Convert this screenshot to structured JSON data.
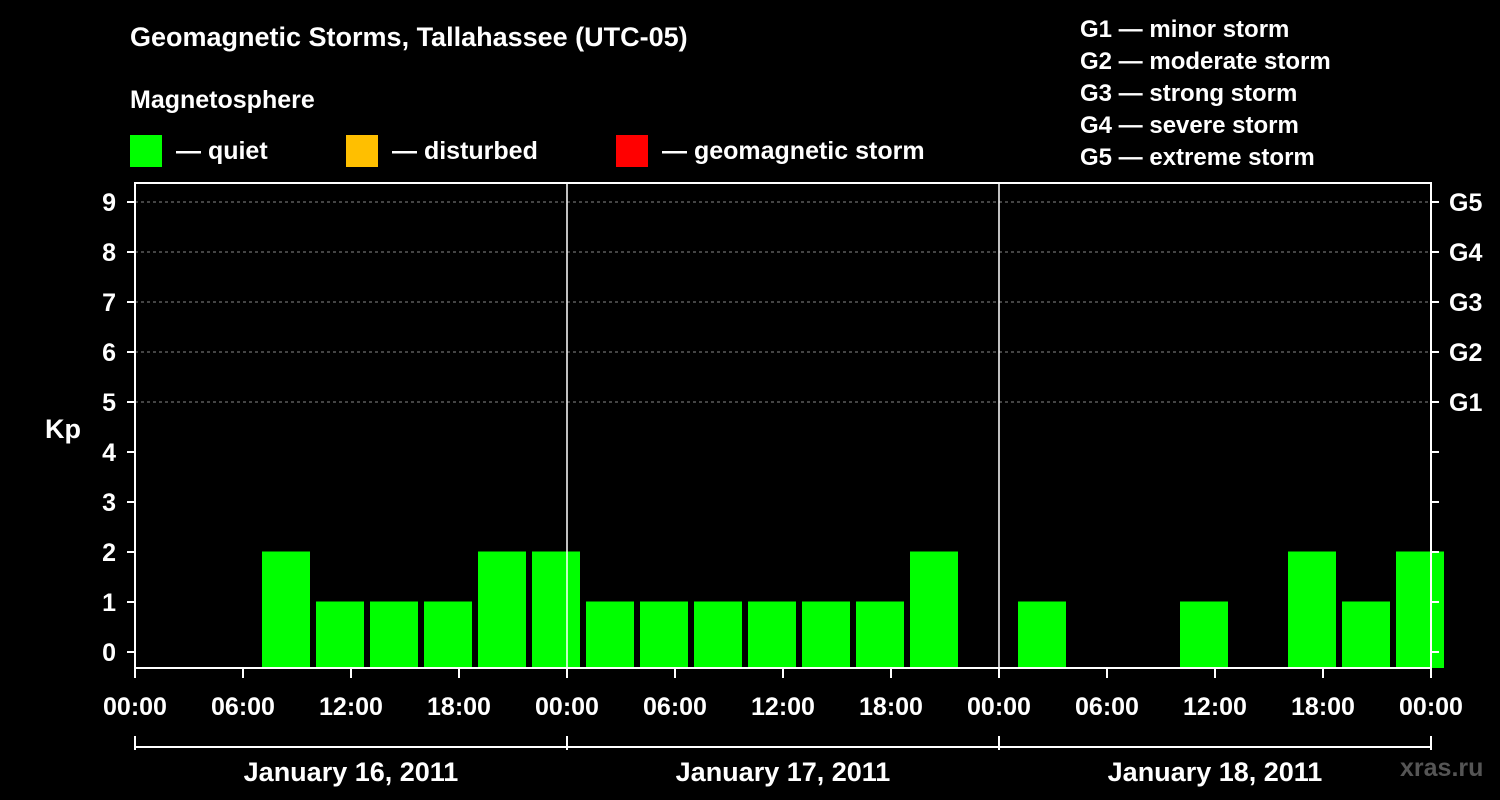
{
  "colors": {
    "quiet": "#00ff00",
    "disturbed": "#ffbf00",
    "storm": "#ff0000",
    "grid": "#888888",
    "axis": "#ffffff",
    "watermark": "#555555"
  },
  "legend": [
    {
      "label": "— quiet",
      "color_key": "quiet"
    },
    {
      "label": "— disturbed",
      "color_key": "disturbed"
    },
    {
      "label": "— geomagnetic storm",
      "color_key": "storm"
    }
  ],
  "g_scale": [
    "G1 — minor storm",
    "G2 — moderate storm",
    "G3 — strong storm",
    "G4 — severe storm",
    "G5 — extreme storm"
  ],
  "watermark": "xras.ru",
  "chart_data": {
    "type": "bar",
    "title": "Geomagnetic Storms, Tallahassee (UTC-05)",
    "subtitle": "Magnetosphere",
    "ylabel": "Kp",
    "ylim": [
      0,
      9
    ],
    "yticks": [
      "0",
      "1",
      "2",
      "3",
      "4",
      "5",
      "6",
      "7",
      "8",
      "9"
    ],
    "right_ticks": [
      {
        "kp": 5,
        "label": "G1"
      },
      {
        "kp": 6,
        "label": "G2"
      },
      {
        "kp": 7,
        "label": "G3"
      },
      {
        "kp": 8,
        "label": "G4"
      },
      {
        "kp": 9,
        "label": "G5"
      }
    ],
    "gridlines_kp": [
      5,
      6,
      7,
      8,
      9
    ],
    "hours_range": [
      0,
      72
    ],
    "xticks": [
      {
        "hour": 0,
        "label": "00:00"
      },
      {
        "hour": 6,
        "label": "06:00"
      },
      {
        "hour": 12,
        "label": "12:00"
      },
      {
        "hour": 18,
        "label": "18:00"
      },
      {
        "hour": 24,
        "label": "00:00"
      },
      {
        "hour": 30,
        "label": "06:00"
      },
      {
        "hour": 36,
        "label": "12:00"
      },
      {
        "hour": 42,
        "label": "18:00"
      },
      {
        "hour": 48,
        "label": "00:00"
      },
      {
        "hour": 54,
        "label": "06:00"
      },
      {
        "hour": 60,
        "label": "12:00"
      },
      {
        "hour": 66,
        "label": "18:00"
      },
      {
        "hour": 72,
        "label": "00:00"
      }
    ],
    "days": [
      {
        "label": "January 16, 2011",
        "start_hour": 0,
        "end_hour": 24
      },
      {
        "label": "January 17, 2011",
        "start_hour": 24,
        "end_hour": 48
      },
      {
        "label": "January 18, 2011",
        "start_hour": 48,
        "end_hour": 72
      }
    ],
    "series": [
      {
        "status": "quiet",
        "bars": [
          {
            "start_hour": 7,
            "kp": 2
          },
          {
            "start_hour": 10,
            "kp": 1
          },
          {
            "start_hour": 13,
            "kp": 1
          },
          {
            "start_hour": 16,
            "kp": 1
          },
          {
            "start_hour": 19,
            "kp": 2
          },
          {
            "start_hour": 22,
            "kp": 2
          },
          {
            "start_hour": 25,
            "kp": 1
          },
          {
            "start_hour": 28,
            "kp": 1
          },
          {
            "start_hour": 31,
            "kp": 1
          },
          {
            "start_hour": 34,
            "kp": 1
          },
          {
            "start_hour": 37,
            "kp": 1
          },
          {
            "start_hour": 40,
            "kp": 1
          },
          {
            "start_hour": 43,
            "kp": 2
          },
          {
            "start_hour": 49,
            "kp": 1
          },
          {
            "start_hour": 58,
            "kp": 1
          },
          {
            "start_hour": 64,
            "kp": 2
          },
          {
            "start_hour": 67,
            "kp": 1
          },
          {
            "start_hour": 70,
            "kp": 2
          }
        ]
      }
    ]
  }
}
